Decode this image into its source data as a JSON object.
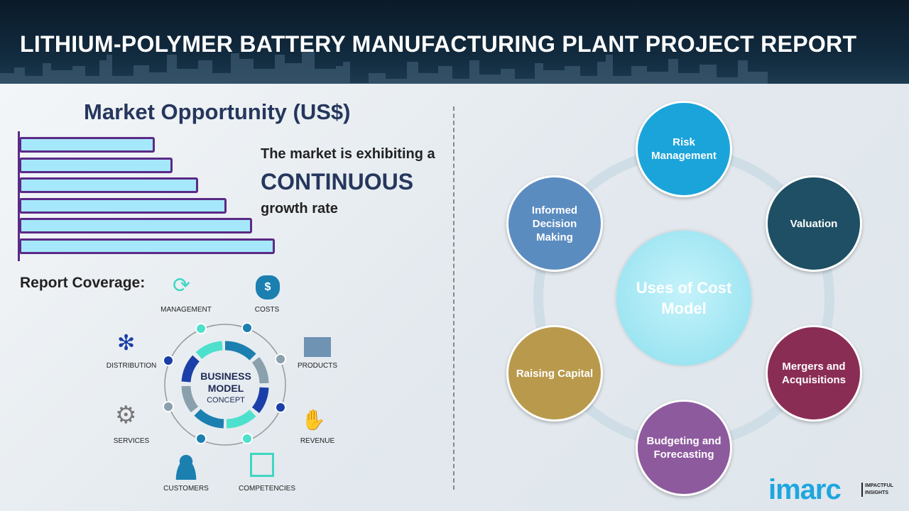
{
  "header": {
    "title": "LITHIUM-POLYMER BATTERY MANUFACTURING PLANT PROJECT REPORT"
  },
  "market": {
    "title": "Market Opportunity (US$)",
    "line1": "The market is exhibiting a",
    "emphasis": "CONTINUOUS",
    "line3": "growth rate",
    "bar_levels": [
      0.53,
      0.6,
      0.7,
      0.81,
      0.91,
      1.0
    ]
  },
  "coverage": {
    "title": "Report Coverage:",
    "center_title": "BUSINESS MODEL",
    "center_subtitle": "CONCEPT",
    "items": [
      "MANAGEMENT",
      "COSTS",
      "PRODUCTS",
      "REVENUE",
      "COMPETENCIES",
      "CUSTOMERS",
      "SERVICES",
      "DISTRIBUTION"
    ]
  },
  "cost_model": {
    "center": "Uses of Cost Model",
    "nodes": [
      {
        "label": "Risk Management",
        "color": "#1ba4da"
      },
      {
        "label": "Valuation",
        "color": "#1e4f64"
      },
      {
        "label": "Mergers and Acquisitions",
        "color": "#8a2d55"
      },
      {
        "label": "Budgeting and Forecasting",
        "color": "#8d5a9e"
      },
      {
        "label": "Raising Capital",
        "color": "#b99a4c"
      },
      {
        "label": "Informed Decision Making",
        "color": "#5b8cc0"
      }
    ]
  },
  "logo": {
    "brand": "imarc",
    "tagline": "IMPACTFUL INSIGHTS"
  }
}
